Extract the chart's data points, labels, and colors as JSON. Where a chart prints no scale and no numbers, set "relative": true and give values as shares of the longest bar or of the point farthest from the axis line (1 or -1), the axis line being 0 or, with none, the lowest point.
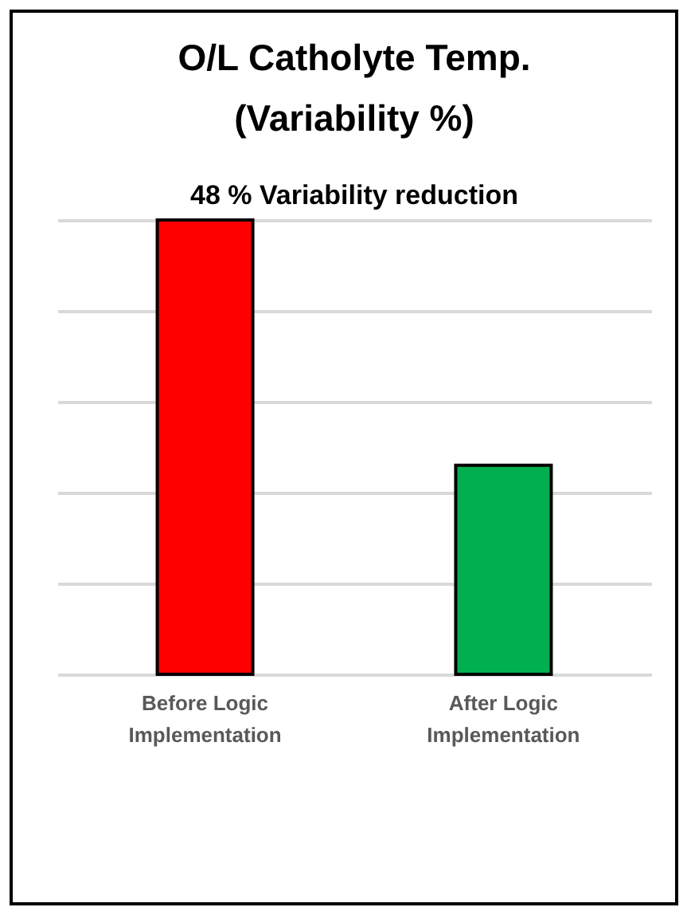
{
  "chart_data": {
    "type": "bar",
    "title": "O/L Catholyte Temp. (Variability %)",
    "annotations": [
      "48 % Variability reduction"
    ],
    "categories": [
      "Before Logic Implementation",
      "After Logic Implementation"
    ],
    "values": [
      1,
      0.46
    ],
    "colors": [
      "#ff0000",
      "#00b050"
    ],
    "relative": true,
    "grid": "y"
  }
}
